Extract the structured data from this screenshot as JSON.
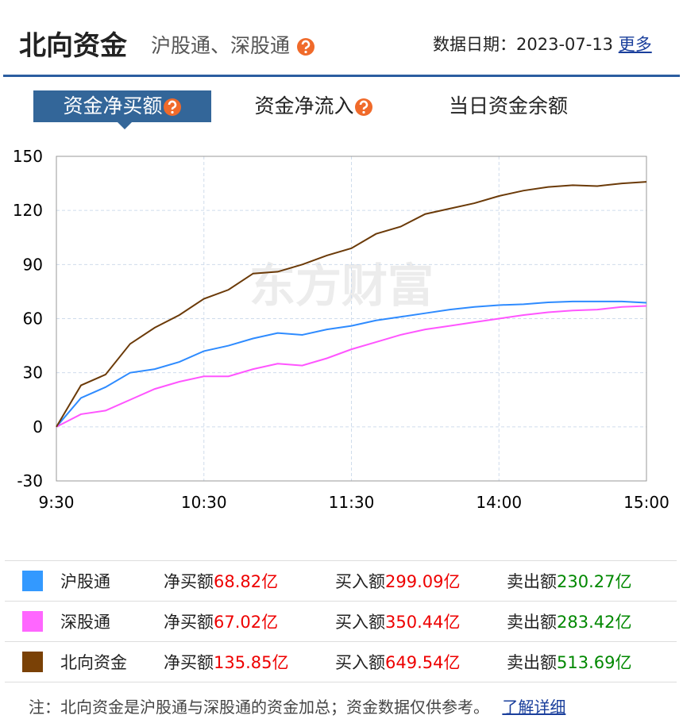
{
  "header": {
    "title": "北向资金",
    "subtitle": "沪股通、深股通",
    "date": "数据日期：2023-07-13",
    "more": "更多"
  },
  "tabs": [
    "资金净买额",
    "资金净流入",
    "当日资金余额"
  ],
  "chart_data": {
    "type": "line",
    "watermark": "东方财富",
    "categories": [
      "9:30",
      null,
      null,
      null,
      null,
      null,
      "10:30",
      null,
      null,
      null,
      null,
      null,
      "11:30",
      null,
      null,
      null,
      null,
      null,
      "14:00",
      null,
      null,
      null,
      null,
      null,
      "15:00"
    ],
    "series": [
      {
        "name": "沪股通",
        "color": "#2e8bff",
        "values": [
          0,
          16,
          22,
          30,
          32,
          36,
          42,
          45,
          49,
          52,
          51,
          54,
          56,
          59,
          61,
          63,
          65,
          66.5,
          67.5,
          68,
          69,
          69.5,
          69.5,
          69.5,
          68.82
        ]
      },
      {
        "name": "深股通",
        "color": "#ff55ff",
        "values": [
          0,
          7,
          9,
          15,
          21,
          25,
          28,
          28,
          32,
          35,
          34,
          38,
          43,
          47,
          51,
          54,
          56,
          58,
          60,
          62,
          63.5,
          64.5,
          65,
          66.5,
          67.02
        ]
      },
      {
        "name": "北向资金",
        "color": "#6b3a08",
        "values": [
          0,
          23,
          29,
          46,
          55,
          62,
          71,
          76,
          85,
          86,
          90,
          95,
          99,
          107,
          111,
          118,
          121,
          124,
          128,
          131,
          133,
          134,
          133.5,
          135,
          135.85
        ]
      }
    ],
    "ylim": [
      -30,
      150
    ],
    "yticks": [
      -30,
      0,
      30,
      60,
      90,
      120,
      150
    ],
    "grid": true
  },
  "table": {
    "rows": [
      {
        "name": "沪股通",
        "color": "#3399ff",
        "net_label": "净买额",
        "net": "68.82亿",
        "buy_label": "买入额",
        "buy": "299.09亿",
        "sell_label": "卖出额",
        "sell": "230.27亿"
      },
      {
        "name": "深股通",
        "color": "#ff66ff",
        "net_label": "净买额",
        "net": "67.02亿",
        "buy_label": "买入额",
        "buy": "350.44亿",
        "sell_label": "卖出额",
        "sell": "283.42亿"
      },
      {
        "name": "北向资金",
        "color": "#7a4106",
        "net_label": "净买额",
        "net": "135.85亿",
        "buy_label": "买入额",
        "buy": "649.54亿",
        "sell_label": "卖出额",
        "sell": "513.69亿"
      }
    ]
  },
  "footer": {
    "note": "注：北向资金是沪股通与深股通的资金加总；资金数据仅供参考。",
    "link": "了解详细"
  }
}
